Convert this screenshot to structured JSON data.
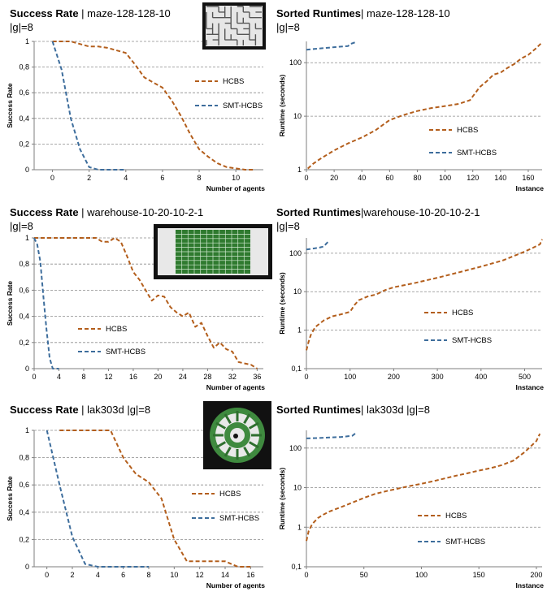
{
  "colors": {
    "HCBS": "#b35e1c",
    "SMT-HCBS": "#3d6d9c",
    "grid": "#8c8c8c",
    "axis": "#7f7f7f"
  },
  "chart_data": [
    {
      "type": "line",
      "title_bold": "Success Rate",
      "title_rest": " | maze-128-128-10",
      "title_line2": "|g|=8",
      "xlabel": "Number of agents",
      "ylabel": "Success Rate",
      "xlim": [
        -1,
        11.5
      ],
      "ylim": [
        0,
        1
      ],
      "xticks": [
        0,
        2,
        4,
        6,
        8,
        10
      ],
      "yticks": [
        0,
        0.2,
        0.4,
        0.6,
        0.8,
        1
      ],
      "ytick_labels": [
        "0",
        "0,2",
        "0,4",
        "0,6",
        "0,8",
        "1"
      ],
      "grid": "horizontal dashed",
      "legend_position": "right",
      "map_icon": "maze-map-icon",
      "series": [
        {
          "name": "HCBS",
          "x": [
            0,
            0.5,
            1,
            1.5,
            2,
            2.5,
            3,
            3.5,
            4,
            4.5,
            5,
            5.5,
            6,
            6.5,
            7,
            7.5,
            8,
            8.5,
            9,
            9.5,
            10,
            10.5,
            11
          ],
          "y": [
            1,
            1,
            1,
            0.98,
            0.96,
            0.96,
            0.95,
            0.93,
            0.91,
            0.82,
            0.72,
            0.68,
            0.64,
            0.54,
            0.42,
            0.28,
            0.16,
            0.1,
            0.05,
            0.02,
            0.01,
            0,
            0
          ]
        },
        {
          "name": "SMT-HCBS",
          "x": [
            0,
            0.5,
            1,
            1.5,
            2,
            2.5,
            3,
            3.5,
            4
          ],
          "y": [
            1,
            0.78,
            0.4,
            0.16,
            0.02,
            0,
            0,
            0,
            0
          ]
        }
      ]
    },
    {
      "type": "line",
      "title_bold": "Sorted Runtimes",
      "title_rest": "| maze-128-128-10",
      "title_line2": "|g|=8",
      "xlabel": "Instance",
      "ylabel": "Runtime (seconds)",
      "y_scale": "log",
      "xlim": [
        0,
        170
      ],
      "ylim": [
        1,
        250
      ],
      "xticks": [
        0,
        20,
        40,
        60,
        80,
        100,
        120,
        140,
        160
      ],
      "yticks": [
        1,
        10,
        100
      ],
      "ytick_labels": [
        "1",
        "10",
        "100"
      ],
      "grid": "horizontal dashed",
      "legend_position": "right",
      "series": [
        {
          "name": "HCBS",
          "x": [
            1,
            5,
            10,
            20,
            30,
            40,
            50,
            60,
            70,
            80,
            90,
            100,
            110,
            118,
            125,
            130,
            135,
            140,
            145,
            150,
            155,
            160,
            165,
            170
          ],
          "y": [
            1.05,
            1.3,
            1.6,
            2.3,
            3.1,
            4.0,
            5.5,
            8.5,
            10.5,
            12.5,
            14.2,
            15.5,
            17,
            20,
            35,
            45,
            60,
            65,
            80,
            95,
            120,
            140,
            180,
            240
          ]
        },
        {
          "name": "SMT-HCBS",
          "x": [
            0,
            5,
            10,
            15,
            20,
            25,
            30,
            32,
            35
          ],
          "y": [
            175,
            180,
            185,
            190,
            195,
            200,
            205,
            225,
            240
          ]
        }
      ]
    },
    {
      "type": "line",
      "title_bold": "Success Rate",
      "title_rest": " | warehouse-10-20-10-2-1",
      "title_line2": "|g|=8",
      "xlabel": "Number of agents",
      "ylabel": "Success Rate",
      "xlim": [
        0,
        37
      ],
      "ylim": [
        0,
        1
      ],
      "xticks": [
        0,
        4,
        8,
        12,
        16,
        20,
        24,
        28,
        32,
        36
      ],
      "yticks": [
        0,
        0.2,
        0.4,
        0.6,
        0.8,
        1
      ],
      "ytick_labels": [
        "0",
        "0,2",
        "0,4",
        "0,6",
        "0,8",
        "1"
      ],
      "grid": "horizontal dashed",
      "legend_position": "left",
      "map_icon": "warehouse-map-icon",
      "series": [
        {
          "name": "HCBS",
          "x": [
            0,
            2,
            4,
            6,
            8,
            10,
            11,
            12,
            13,
            14,
            15,
            16,
            17,
            18,
            19,
            20,
            21,
            22,
            23,
            24,
            25,
            26,
            27,
            28,
            29,
            30,
            31,
            32,
            33,
            34,
            35,
            36
          ],
          "y": [
            1,
            1,
            1,
            1,
            1,
            1,
            0.97,
            0.97,
            1,
            0.97,
            0.86,
            0.74,
            0.68,
            0.6,
            0.52,
            0.56,
            0.55,
            0.47,
            0.43,
            0.4,
            0.43,
            0.32,
            0.35,
            0.25,
            0.16,
            0.2,
            0.15,
            0.13,
            0.05,
            0.04,
            0.03,
            0
          ]
        },
        {
          "name": "SMT-HCBS",
          "x": [
            0,
            0.5,
            1,
            1.5,
            2,
            2.5,
            3,
            3.5,
            4
          ],
          "y": [
            1,
            0.95,
            0.82,
            0.55,
            0.3,
            0.08,
            0,
            0,
            0
          ]
        }
      ]
    },
    {
      "type": "line",
      "title_bold": "Sorted Runtimes",
      "title_rest": "|warehouse-10-20-10-2-1",
      "title_line2": "|g|=8",
      "xlabel": "Instance",
      "ylabel": "Runtime (seconds)",
      "y_scale": "log",
      "xlim": [
        0,
        540
      ],
      "ylim": [
        0.1,
        250
      ],
      "xticks": [
        0,
        100,
        200,
        300,
        400,
        500
      ],
      "yticks": [
        0.1,
        1,
        10,
        100
      ],
      "ytick_labels": [
        "0,1",
        "1",
        "10",
        "100"
      ],
      "grid": "horizontal dashed",
      "legend_position": "right",
      "series": [
        {
          "name": "HCBS",
          "x": [
            0,
            5,
            10,
            20,
            40,
            60,
            80,
            100,
            110,
            120,
            140,
            160,
            180,
            200,
            250,
            300,
            350,
            400,
            450,
            500,
            520,
            535,
            540
          ],
          "y": [
            0.3,
            0.5,
            0.75,
            1.2,
            1.8,
            2.3,
            2.6,
            3.0,
            4.5,
            6.0,
            7.5,
            8.5,
            11,
            13,
            17,
            23,
            32,
            45,
            65,
            110,
            140,
            170,
            230
          ]
        },
        {
          "name": "SMT-HCBS",
          "x": [
            0,
            10,
            20,
            30,
            40,
            45,
            50
          ],
          "y": [
            125,
            130,
            135,
            140,
            150,
            175,
            200
          ]
        }
      ]
    },
    {
      "type": "line",
      "title_bold": "Success Rate",
      "title_rest": " | lak303d |g|=8",
      "title_line2": "",
      "xlabel": "Number of agents",
      "ylabel": "Success Rate",
      "xlim": [
        -1,
        17
      ],
      "ylim": [
        0,
        1
      ],
      "xticks": [
        0,
        2,
        4,
        6,
        8,
        10,
        12,
        14,
        16
      ],
      "yticks": [
        0,
        0.2,
        0.4,
        0.6,
        0.8,
        1
      ],
      "ytick_labels": [
        "0",
        "0,2",
        "0,4",
        "0,6",
        "0,8",
        "1"
      ],
      "grid": "horizontal dashed",
      "legend_position": "right",
      "map_icon": "lak303d-map-icon",
      "series": [
        {
          "name": "HCBS",
          "x": [
            1,
            2,
            3,
            4,
            5,
            6,
            7,
            8,
            9,
            10,
            11,
            12,
            13,
            14,
            15,
            16
          ],
          "y": [
            1,
            1,
            1,
            1,
            1,
            0.8,
            0.68,
            0.62,
            0.5,
            0.2,
            0.04,
            0.04,
            0.04,
            0.04,
            0,
            0
          ]
        },
        {
          "name": "SMT-HCBS",
          "x": [
            0,
            1,
            2,
            3,
            4,
            5,
            6,
            7,
            8
          ],
          "y": [
            1,
            0.6,
            0.22,
            0.02,
            0,
            0,
            0,
            0,
            0
          ]
        }
      ]
    },
    {
      "type": "line",
      "title_bold": "Sorted Runtimes",
      "title_rest": "| lak303d |g|=8",
      "title_line2": "",
      "xlabel": "Instance",
      "ylabel": "Runtime (seconds)",
      "y_scale": "log",
      "xlim": [
        0,
        205
      ],
      "ylim": [
        0.1,
        280
      ],
      "xticks": [
        0,
        50,
        100,
        150,
        200
      ],
      "yticks": [
        0.1,
        1,
        10,
        100
      ],
      "ytick_labels": [
        "0,1",
        "1",
        "10",
        "100"
      ],
      "grid": "horizontal dashed",
      "legend_position": "right",
      "series": [
        {
          "name": "HCBS",
          "x": [
            0,
            2,
            5,
            10,
            15,
            20,
            30,
            40,
            50,
            60,
            70,
            80,
            90,
            100,
            110,
            120,
            130,
            140,
            150,
            160,
            170,
            180,
            190,
            195,
            200,
            203
          ],
          "y": [
            0.45,
            0.8,
            1.2,
            1.7,
            2.1,
            2.5,
            3.2,
            4.2,
            5.5,
            7,
            8.2,
            9.5,
            11,
            12.5,
            14.5,
            17,
            20,
            23,
            27,
            31,
            37,
            48,
            80,
            110,
            150,
            230
          ]
        },
        {
          "name": "SMT-HCBS",
          "x": [
            0,
            10,
            20,
            30,
            40,
            43
          ],
          "y": [
            175,
            180,
            185,
            190,
            205,
            240
          ]
        }
      ]
    }
  ]
}
